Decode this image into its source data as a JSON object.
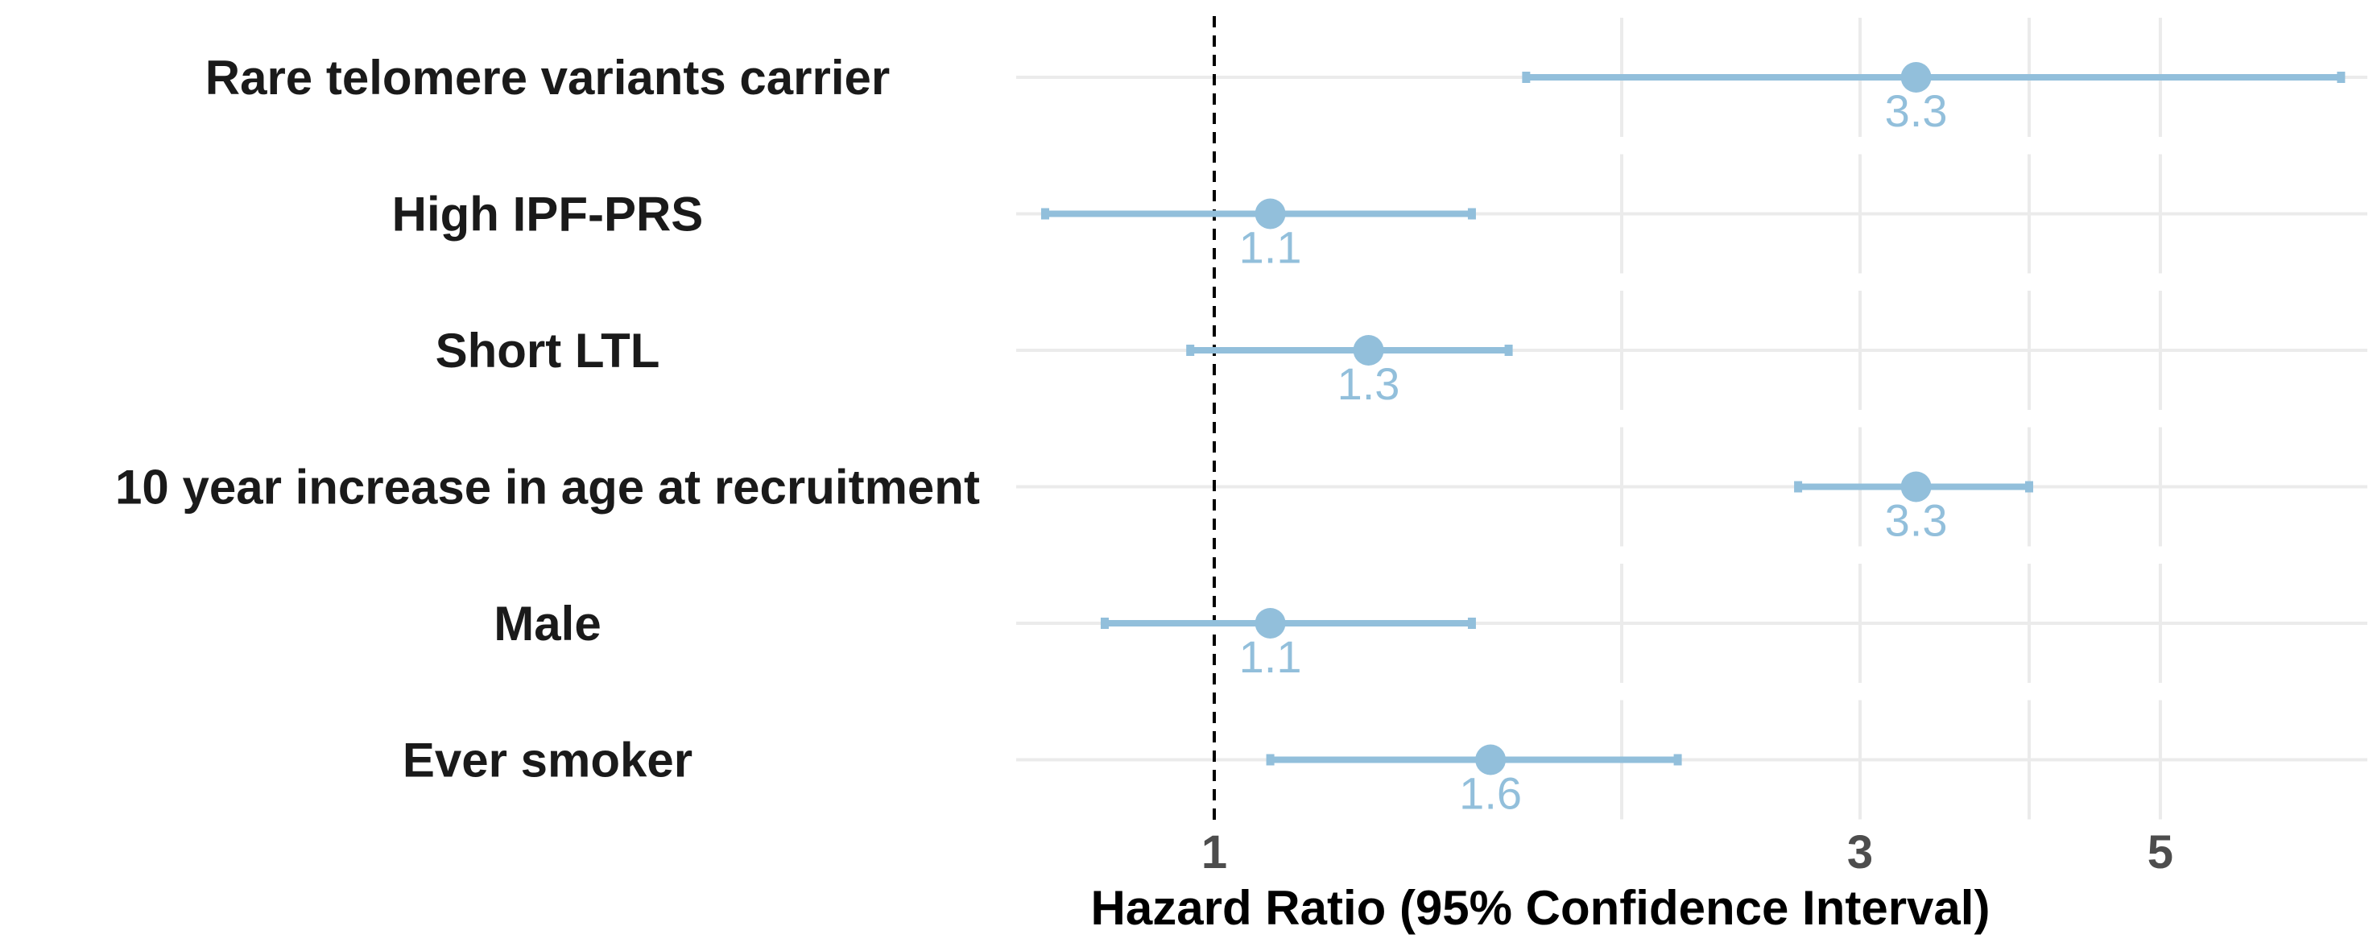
{
  "chart_data": {
    "type": "forest",
    "xlabel": "Hazard Ratio (95% Confidence Interval)",
    "x_scale": "log",
    "xlim": [
      0.66,
      7.2
    ],
    "x_ticks": [
      1,
      3,
      5
    ],
    "x_tick_labels": [
      "1",
      "3",
      "5"
    ],
    "reference_line": 1,
    "grid": true,
    "colors": {
      "point": "#92bfdb",
      "reference": "#000000",
      "grid": "#ebebeb"
    },
    "rows": [
      {
        "label": "Rare telomere variants carrier",
        "hr": 3.3,
        "lower": 1.7,
        "upper": 6.8,
        "value_label": "3.3"
      },
      {
        "label": "High IPF-PRS",
        "hr": 1.1,
        "lower": 0.75,
        "upper": 1.55,
        "value_label": "1.1"
      },
      {
        "label": "Short LTL",
        "hr": 1.3,
        "lower": 0.96,
        "upper": 1.65,
        "value_label": "1.3"
      },
      {
        "label": "10 year increase in age at recruitment",
        "hr": 3.3,
        "lower": 2.7,
        "upper": 4.0,
        "value_label": "3.3"
      },
      {
        "label": "Male",
        "hr": 1.1,
        "lower": 0.83,
        "upper": 1.55,
        "value_label": "1.1"
      },
      {
        "label": "Ever smoker",
        "hr": 1.6,
        "lower": 1.1,
        "upper": 2.2,
        "value_label": "1.6"
      }
    ]
  }
}
